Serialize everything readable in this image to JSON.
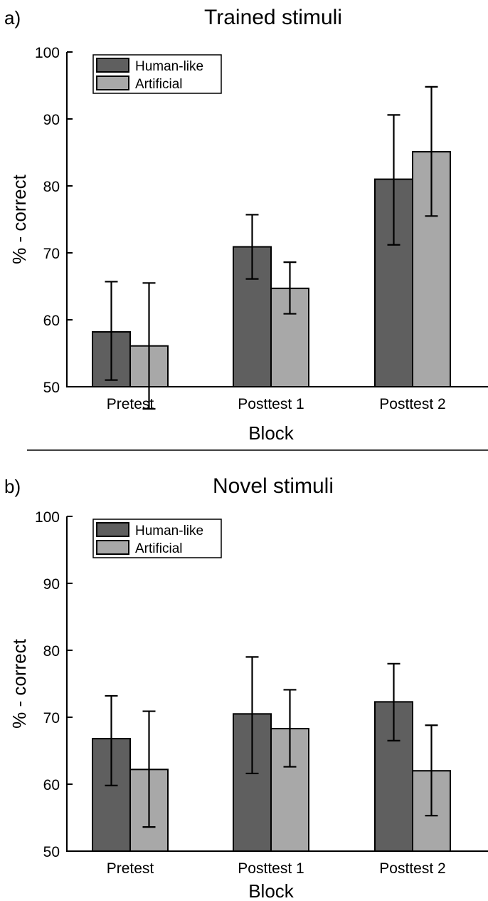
{
  "chart_data": [
    {
      "panel_label": "a)",
      "type": "bar",
      "title": "Trained stimuli",
      "xlabel": "Block",
      "ylabel": "% - correct",
      "ylim": [
        50,
        100
      ],
      "yticks": [
        50,
        60,
        70,
        80,
        90,
        100
      ],
      "categories": [
        "Pretest",
        "Posttest 1",
        "Posttest 2"
      ],
      "legend_position": "top-left",
      "series": [
        {
          "name": "Human-like",
          "color": "#5f5f5f",
          "values": [
            58.2,
            70.9,
            81.0
          ],
          "err_low": [
            51.0,
            66.1,
            71.2
          ],
          "err_high": [
            65.7,
            75.7,
            90.6
          ]
        },
        {
          "name": "Artificial",
          "color": "#a8a8a8",
          "values": [
            56.1,
            64.7,
            85.1
          ],
          "err_low": [
            46.7,
            60.9,
            75.5
          ],
          "err_high": [
            65.5,
            68.6,
            94.8
          ]
        }
      ]
    },
    {
      "panel_label": "b)",
      "type": "bar",
      "title": "Novel stimuli",
      "xlabel": "Block",
      "ylabel": "% - correct",
      "ylim": [
        50,
        100
      ],
      "yticks": [
        50,
        60,
        70,
        80,
        90,
        100
      ],
      "categories": [
        "Pretest",
        "Posttest 1",
        "Posttest 2"
      ],
      "legend_position": "top-left",
      "series": [
        {
          "name": "Human-like",
          "color": "#5f5f5f",
          "values": [
            66.8,
            70.5,
            72.3
          ],
          "err_low": [
            59.8,
            61.6,
            66.5
          ],
          "err_high": [
            73.2,
            79.0,
            78.0
          ]
        },
        {
          "name": "Artificial",
          "color": "#a8a8a8",
          "values": [
            62.2,
            68.3,
            62.0
          ],
          "err_low": [
            53.6,
            62.6,
            55.3
          ],
          "err_high": [
            70.9,
            74.1,
            68.8
          ]
        }
      ]
    }
  ]
}
